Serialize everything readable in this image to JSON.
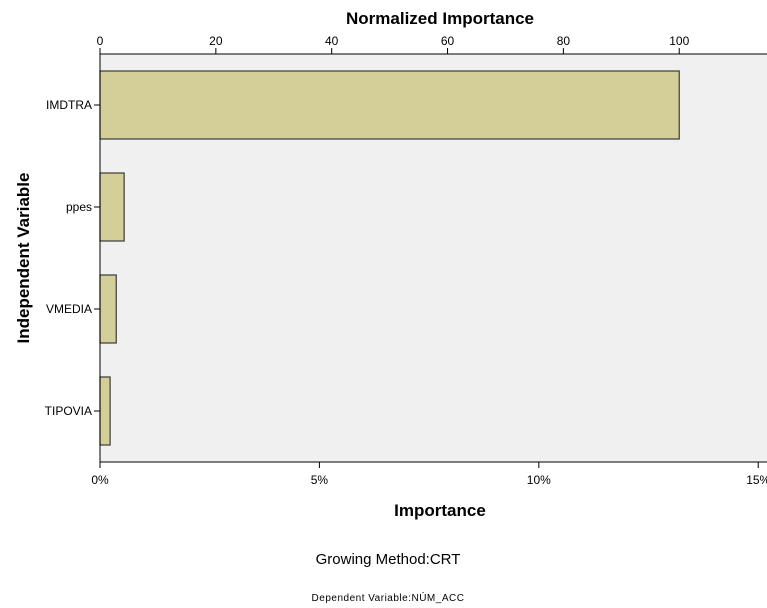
{
  "chart_data": {
    "type": "bar",
    "orientation": "horizontal",
    "title_top": "Normalized Importance",
    "xlabel": "Importance",
    "ylabel": "Independent Variable",
    "categories": [
      "IMDTRA",
      "ppes",
      "VMEDIA",
      "TIPOVIA"
    ],
    "values": [
      13.2,
      0.55,
      0.37,
      0.23
    ],
    "normalized_values": [
      100,
      4.1,
      2.8,
      1.7
    ],
    "xlim": [
      0,
      15.2
    ],
    "x_ticks": [
      "0%",
      "5%",
      "10%",
      "15%"
    ],
    "x_tick_values": [
      0,
      5,
      10,
      15
    ],
    "top_ticks": [
      "0",
      "20",
      "40",
      "60",
      "80",
      "100"
    ],
    "top_tick_values": [
      0,
      20,
      40,
      60,
      80,
      100
    ],
    "grid": false,
    "colors": {
      "bar": "#d4cf98",
      "bar_edge": "#3a3a3a",
      "plot_bg": "#f0f0f0"
    }
  },
  "footer": {
    "growing_method": "Growing Method:CRT",
    "dependent_variable": "Dependent Variable:NÚM_ACC"
  }
}
